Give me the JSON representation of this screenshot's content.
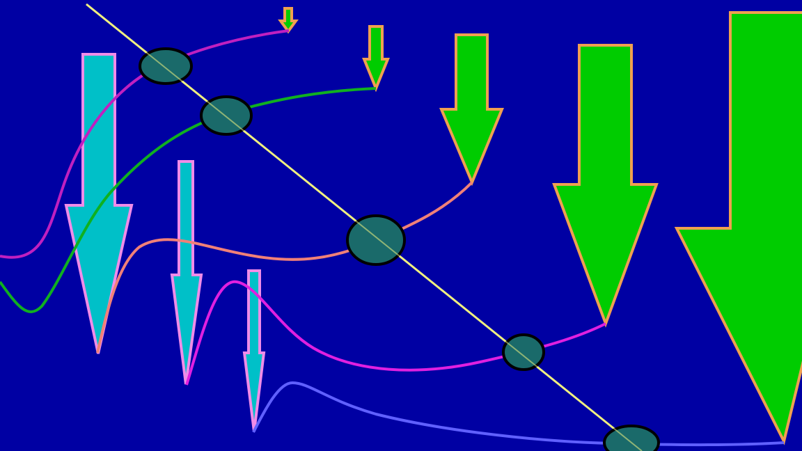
{
  "background": "#0000a3",
  "palette": {
    "cyan_fill": "#00c0c8",
    "cyan_stroke": "#f08ce8",
    "green_fill": "#00cc00",
    "green_stroke": "#f0a050",
    "diagonal_line": "#f0f080",
    "ellipse_stroke": "#000000",
    "ellipse_fill": "#1a6a6a"
  },
  "curves": [
    {
      "name": "magenta-upper-curve",
      "color": "#c020c0"
    },
    {
      "name": "green-curve",
      "color": "#10b020"
    },
    {
      "name": "salmon-curve",
      "color": "#f08078"
    },
    {
      "name": "magenta-lower-curve",
      "color": "#e020e0"
    },
    {
      "name": "periwinkle-curve",
      "color": "#6060ff"
    }
  ]
}
